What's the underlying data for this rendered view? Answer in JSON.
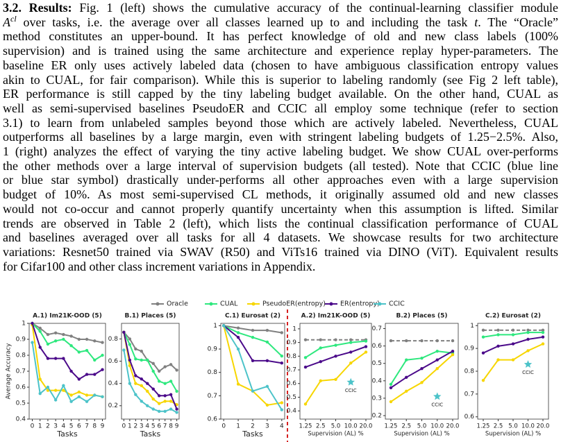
{
  "paragraph": {
    "heading": "3.2. Results:",
    "line1": " Fig. 1 (left) shows the cumulative accuracy of the continual-learning classifier module",
    "math_A": "A",
    "math_cl": "cl",
    "line2a": " over tasks, i.e. the average over all classes learned up to and including the task ",
    "math_t": "t",
    "line2b": ". The “Oracle”",
    "lines": [
      "method constitutes an upper-bound.  It has perfect knowledge of old and new class labels (100%",
      "supervision) and is trained using the same architecture and experience replay hyper-parameters. The",
      "baseline ER only uses actively labeled data (chosen to have ambiguous classification entropy values",
      "akin to CUAL, for fair comparison). While this is superior to labeling randomly (see Fig 2 left table),",
      "ER performance is still capped by the tiny labeling budget available.  On the other hand, CUAL as",
      "well as semi-supervised baselines PseudoER and CCIC all employ some technique (refer to section",
      "3.1) to learn from unlabeled samples beyond those which are actively labeled. Nevertheless, CUAL",
      "outperforms all baselines by a large margin, even with stringent labeling budgets of 1.25−2.5%. Also,",
      "1 (right) analyzes the effect of varying the tiny active labeling budget. We show CUAL over-performs",
      "the other methods over a large interval of supervision budgets (all tested). Note that CCIC (blue line",
      "or blue star symbol) drastically under-performs all other approaches even with a large supervision",
      "budget of 10%. As most semi-supervised CL methods, it originally assumed old and new classes",
      "would not co-occur and cannot properly quantify uncertainty when this assumption is lifted. Similar",
      "trends are observed in Table 2 (left), which lists the continual classification performance of CUAL",
      "and baselines averaged over all tasks for all 4 datasets. We showcase results for two architecture",
      "variations: Resnet50 trained via SWAV (R50) and ViTs16 trained via DINO (ViT). Equivalent results",
      "for Cifar100 and other class increment variations in Appendix."
    ]
  },
  "legend": [
    {
      "name": "Oracle",
      "color": "#808080"
    },
    {
      "name": "CUAL",
      "color": "#2ee87e"
    },
    {
      "name": "PseudoER(entropy)",
      "color": "#f7d600"
    },
    {
      "name": "ER(entropy)",
      "color": "#4b0a8a"
    },
    {
      "name": "CCIC",
      "color": "#4cc3c9"
    }
  ],
  "chart_data": [
    {
      "type": "line",
      "title": "A.1) Im21K-OOD (5)",
      "ylabel": "Average Accuracy",
      "xlabel": "Tasks",
      "x": [
        0,
        1,
        2,
        3,
        4,
        5,
        6,
        7,
        8,
        9
      ],
      "xlim": [
        -0.4,
        9.4
      ],
      "xticks": [
        0,
        1,
        2,
        3,
        4,
        5,
        6,
        7,
        8,
        9
      ],
      "ylim": [
        0.4,
        1.0
      ],
      "yticks": [
        0.4,
        0.5,
        0.6,
        0.7,
        0.8,
        0.9,
        1.0
      ],
      "series": [
        {
          "name": "Oracle",
          "values": [
            1.0,
            0.97,
            0.93,
            0.94,
            0.93,
            0.92,
            0.9,
            0.9,
            0.89,
            0.88
          ]
        },
        {
          "name": "CUAL",
          "values": [
            1.0,
            0.95,
            0.87,
            0.89,
            0.9,
            0.86,
            0.82,
            0.83,
            0.77,
            0.8
          ]
        },
        {
          "name": "PseudoER(entropy)",
          "values": [
            0.99,
            0.65,
            0.58,
            0.58,
            0.58,
            0.55,
            0.57,
            0.55,
            0.55,
            0.54
          ]
        },
        {
          "name": "ER(entropy)",
          "values": [
            1.0,
            0.85,
            0.78,
            0.78,
            0.78,
            0.7,
            0.65,
            0.68,
            0.68,
            0.71
          ]
        },
        {
          "name": "CCIC",
          "values": [
            0.88,
            0.56,
            0.6,
            0.52,
            0.61,
            0.51,
            0.54,
            0.51,
            0.55,
            0.54
          ]
        }
      ]
    },
    {
      "type": "line",
      "title": "B.1) Places (5)",
      "xlabel": "Tasks",
      "x": [
        0,
        1,
        2,
        3,
        4,
        5,
        6,
        7,
        8,
        9
      ],
      "xlim": [
        -0.4,
        9.4
      ],
      "xticks": [
        0,
        1,
        2,
        3,
        4,
        5,
        6,
        7,
        8,
        9
      ],
      "ylim": [
        0.08,
        0.94
      ],
      "yticks": [
        0.2,
        0.4,
        0.6,
        0.8
      ],
      "series": [
        {
          "name": "Oracle",
          "values": [
            0.86,
            0.8,
            0.71,
            0.69,
            0.61,
            0.58,
            0.51,
            0.55,
            0.57,
            0.52
          ]
        },
        {
          "name": "CUAL",
          "values": [
            0.86,
            0.75,
            0.62,
            0.61,
            0.61,
            0.51,
            0.42,
            0.4,
            0.42,
            0.33
          ]
        },
        {
          "name": "PseudoER(entropy)",
          "values": [
            0.86,
            0.56,
            0.4,
            0.38,
            0.33,
            0.26,
            0.22,
            0.24,
            0.24,
            0.21
          ]
        },
        {
          "name": "ER(entropy)",
          "values": [
            0.86,
            0.61,
            0.47,
            0.44,
            0.4,
            0.35,
            0.29,
            0.29,
            0.3,
            0.17
          ]
        },
        {
          "name": "CCIC",
          "values": [
            0.7,
            0.4,
            0.3,
            0.24,
            0.2,
            0.17,
            0.15,
            0.15,
            0.17,
            0.14
          ]
        }
      ]
    },
    {
      "type": "line",
      "title": "C.1) Eurosat (2)",
      "xlabel": "Tasks",
      "x": [
        0,
        1,
        2,
        3,
        4
      ],
      "xlim": [
        -0.2,
        4.2
      ],
      "xticks": [
        0,
        1,
        2,
        3,
        4
      ],
      "ylim": [
        0.6,
        1.01
      ],
      "yticks": [
        0.6,
        0.7,
        0.8,
        0.9,
        1.0
      ],
      "series": [
        {
          "name": "Oracle",
          "values": [
            1.0,
            0.99,
            0.98,
            0.98,
            0.97
          ]
        },
        {
          "name": "CUAL",
          "values": [
            1.0,
            0.97,
            0.95,
            0.93,
            0.87
          ]
        },
        {
          "name": "PseudoER(entropy)",
          "values": [
            1.0,
            0.75,
            0.72,
            0.66,
            0.67
          ]
        },
        {
          "name": "ER(entropy)",
          "values": [
            1.0,
            0.95,
            0.85,
            0.85,
            0.84
          ]
        },
        {
          "name": "CCIC",
          "values": [
            1.0,
            0.9,
            0.72,
            0.74,
            0.64
          ]
        }
      ]
    },
    {
      "type": "line",
      "title": "A.2) Im21K-OOD (5)",
      "xlabel": "Supervision (AL) %",
      "annotation": "CCIC",
      "categories": [
        "1.25",
        "2.5",
        "5.0",
        "10.0",
        "20.0"
      ],
      "ylim": [
        0.34,
        1.04
      ],
      "yticks": [
        0.4,
        0.5,
        0.6,
        0.7,
        0.8,
        0.9,
        1.0
      ],
      "series": [
        {
          "name": "Oracle",
          "style": "dashed",
          "values": [
            0.92,
            0.92,
            0.92,
            0.92,
            0.92
          ]
        },
        {
          "name": "CUAL",
          "values": [
            0.79,
            0.86,
            0.88,
            0.9,
            0.91
          ]
        },
        {
          "name": "PseudoER(entropy)",
          "values": [
            0.45,
            0.62,
            0.63,
            0.75,
            0.83
          ]
        },
        {
          "name": "ER(entropy)",
          "values": [
            0.72,
            0.76,
            0.8,
            0.83,
            0.87
          ]
        },
        {
          "name": "CCIC",
          "marker": "star",
          "values": [
            null,
            null,
            null,
            0.61,
            null
          ]
        }
      ]
    },
    {
      "type": "line",
      "title": "B.2) Places (5)",
      "xlabel": "Supervision (AL) %",
      "annotation": "CCIC",
      "categories": [
        "1.25",
        "2.5",
        "5.0",
        "10.0",
        "20.0"
      ],
      "ylim": [
        0.18,
        0.73
      ],
      "yticks": [
        0.2,
        0.3,
        0.4,
        0.5,
        0.6,
        0.7
      ],
      "series": [
        {
          "name": "Oracle",
          "style": "dashed",
          "values": [
            0.63,
            0.63,
            0.63,
            0.63,
            0.63
          ]
        },
        {
          "name": "CUAL",
          "values": [
            0.38,
            0.52,
            0.53,
            0.57,
            0.56
          ]
        },
        {
          "name": "PseudoER(entropy)",
          "values": [
            0.28,
            0.34,
            0.39,
            0.47,
            0.55
          ]
        },
        {
          "name": "ER(entropy)",
          "values": [
            0.36,
            0.42,
            0.47,
            0.52,
            0.57
          ]
        },
        {
          "name": "CCIC",
          "marker": "star",
          "values": [
            null,
            null,
            null,
            0.31,
            null
          ]
        }
      ]
    },
    {
      "type": "line",
      "title": "C.2) Eurosat (2)",
      "xlabel": "Supervision (AL) %",
      "annotation": "CCIC",
      "categories": [
        "1.25",
        "2.5",
        "5.0",
        "10.0",
        "20.0"
      ],
      "ylim": [
        0.59,
        1.01
      ],
      "yticks": [
        0.6,
        0.7,
        0.8,
        0.9,
        1.0
      ],
      "series": [
        {
          "name": "Oracle",
          "style": "dashed",
          "values": [
            0.98,
            0.98,
            0.98,
            0.98,
            0.98
          ]
        },
        {
          "name": "CUAL",
          "values": [
            0.95,
            0.96,
            0.96,
            0.97,
            0.97
          ]
        },
        {
          "name": "PseudoER(entropy)",
          "values": [
            0.76,
            0.85,
            0.85,
            0.89,
            0.92
          ]
        },
        {
          "name": "ER(entropy)",
          "values": [
            0.88,
            0.91,
            0.92,
            0.94,
            0.95
          ]
        },
        {
          "name": "CCIC",
          "marker": "star",
          "values": [
            null,
            null,
            null,
            0.83,
            null
          ]
        }
      ]
    }
  ]
}
